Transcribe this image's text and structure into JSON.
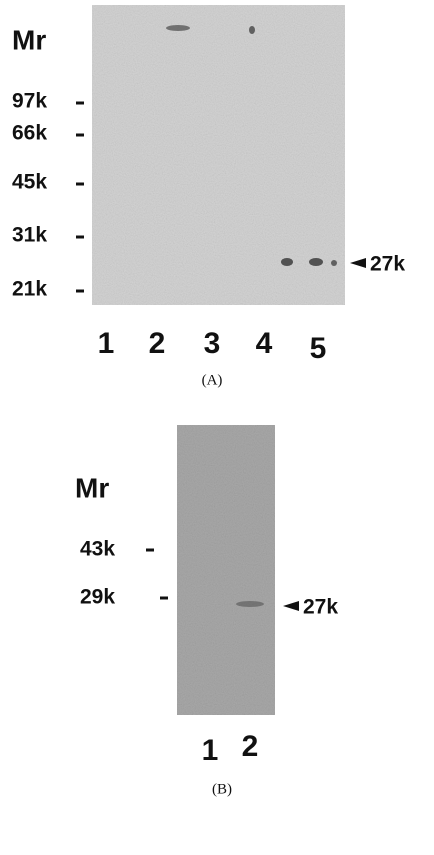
{
  "panels": [
    {
      "mr_label": "Mr",
      "markers": [
        "97k",
        "66k",
        "45k",
        "31k",
        "21k"
      ],
      "band_label": "27k",
      "lanes": [
        "1",
        "2",
        "3",
        "4",
        "5"
      ],
      "caption": "(A)"
    },
    {
      "mr_label": "Mr",
      "markers": [
        "43k",
        "29k"
      ],
      "band_label": "27k",
      "lanes": [
        "1",
        "2"
      ],
      "caption": "(B)"
    }
  ]
}
